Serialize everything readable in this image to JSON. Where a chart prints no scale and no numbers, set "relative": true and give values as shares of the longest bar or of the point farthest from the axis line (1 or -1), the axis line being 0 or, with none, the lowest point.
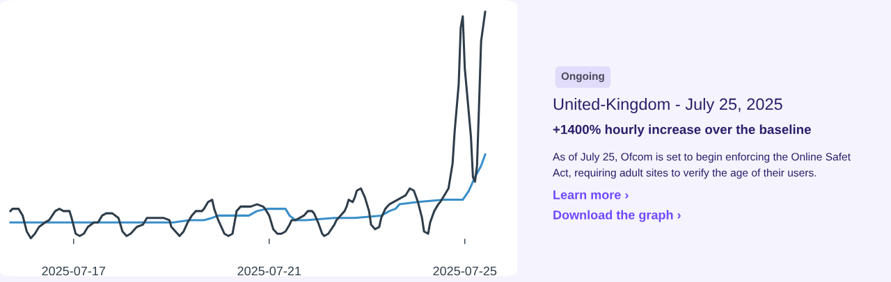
{
  "chart_data": [
    {
      "type": "line",
      "relative": true,
      "tick_labels": "x",
      "grid": false,
      "marker": "none",
      "line_style": "solid",
      "xlim": [
        "2025-07-15T17:00",
        "2025-07-25T10:00"
      ],
      "xticks": [
        "2025-07-17",
        "2025-07-21",
        "2025-07-25"
      ],
      "series": [
        {
          "color": "#2e3d4a",
          "x": [
            "2025-07-15T17:00",
            "2025-07-15T18:00",
            "2025-07-15T21:00",
            "2025-07-15T23:00",
            "2025-07-16T01:00",
            "2025-07-16T03:00",
            "2025-07-16T05:00",
            "2025-07-16T07:00",
            "2025-07-16T10:00",
            "2025-07-16T12:00",
            "2025-07-16T15:00",
            "2025-07-16T17:00",
            "2025-07-16T19:00",
            "2025-07-16T22:00",
            "2025-07-16T23:00",
            "2025-07-17T01:00",
            "2025-07-17T03:00",
            "2025-07-17T05:00",
            "2025-07-17T07:00",
            "2025-07-17T10:00",
            "2025-07-17T12:00",
            "2025-07-17T14:00",
            "2025-07-17T16:00",
            "2025-07-17T19:00",
            "2025-07-17T22:00",
            "2025-07-18T00:00",
            "2025-07-18T02:00",
            "2025-07-18T04:00",
            "2025-07-18T07:00",
            "2025-07-18T10:00",
            "2025-07-18T12:00",
            "2025-07-18T14:00",
            "2025-07-18T16:00",
            "2025-07-18T20:00",
            "2025-07-18T23:00",
            "2025-07-19T00:00",
            "2025-07-19T03:00",
            "2025-07-19T04:00",
            "2025-07-19T06:00",
            "2025-07-19T08:00",
            "2025-07-19T10:00",
            "2025-07-19T12:00",
            "2025-07-19T15:00",
            "2025-07-19T16:00",
            "2025-07-19T18:00",
            "2025-07-19T20:00",
            "2025-07-19T21:00",
            "2025-07-19T23:00",
            "2025-07-20T02:00",
            "2025-07-20T04:00",
            "2025-07-20T06:00",
            "2025-07-20T07:00",
            "2025-07-20T08:00",
            "2025-07-20T10:00",
            "2025-07-20T13:00",
            "2025-07-20T15:00",
            "2025-07-20T18:00",
            "2025-07-20T21:00",
            "2025-07-20T22:00",
            "2025-07-21T00:00",
            "2025-07-21T02:00",
            "2025-07-21T04:00",
            "2025-07-21T06:00",
            "2025-07-21T08:00",
            "2025-07-21T10:00",
            "2025-07-21T11:00",
            "2025-07-21T13:00",
            "2025-07-21T15:00",
            "2025-07-21T17:00",
            "2025-07-21T19:00",
            "2025-07-21T21:00",
            "2025-07-21T22:00",
            "2025-07-22T00:00",
            "2025-07-22T02:00",
            "2025-07-22T03:00",
            "2025-07-22T05:00",
            "2025-07-22T08:00",
            "2025-07-22T09:00",
            "2025-07-22T11:00",
            "2025-07-22T13:00",
            "2025-07-22T14:00",
            "2025-07-22T15:00",
            "2025-07-22T17:00",
            "2025-07-22T18:00",
            "2025-07-22T19:00",
            "2025-07-22T21:00",
            "2025-07-22T23:00",
            "2025-07-23T01:00",
            "2025-07-23T02:00",
            "2025-07-23T04:00",
            "2025-07-23T06:00",
            "2025-07-23T07:00",
            "2025-07-23T09:00",
            "2025-07-23T11:00",
            "2025-07-23T13:00",
            "2025-07-23T15:00",
            "2025-07-23T17:00",
            "2025-07-23T19:00",
            "2025-07-23T21:00",
            "2025-07-23T23:00",
            "2025-07-24T01:00",
            "2025-07-24T03:00",
            "2025-07-24T04:00",
            "2025-07-24T06:00",
            "2025-07-24T07:00",
            "2025-07-24T09:00",
            "2025-07-24T11:00",
            "2025-07-24T12:00",
            "2025-07-24T14:00",
            "2025-07-24T16:00",
            "2025-07-24T18:00",
            "2025-07-24T19:00",
            "2025-07-24T21:00",
            "2025-07-24T22:00",
            "2025-07-24T23:00",
            "2025-07-25T00:00",
            "2025-07-25T01:00",
            "2025-07-25T03:00",
            "2025-07-25T04:00",
            "2025-07-25T05:00",
            "2025-07-25T06:00",
            "2025-07-25T07:00",
            "2025-07-25T08:00",
            "2025-07-25T10:00"
          ],
          "values": [
            0.12,
            0.13,
            0.13,
            0.1,
            0.03,
            0,
            0.02,
            0.05,
            0.07,
            0.08,
            0.12,
            0.13,
            0.12,
            0.12,
            0.09,
            0.02,
            0.01,
            0.02,
            0.05,
            0.07,
            0.07,
            0.1,
            0.11,
            0.11,
            0.09,
            0.03,
            0.01,
            0.02,
            0.05,
            0.06,
            0.09,
            0.09,
            0.09,
            0.09,
            0.08,
            0.05,
            0.02,
            0.01,
            0.03,
            0.07,
            0.1,
            0.12,
            0.12,
            0.13,
            0.16,
            0.17,
            0.13,
            0.08,
            0.02,
            0.01,
            0.02,
            0.07,
            0.12,
            0.14,
            0.14,
            0.14,
            0.15,
            0.14,
            0.13,
            0.1,
            0.04,
            0.02,
            0.02,
            0.03,
            0.06,
            0.08,
            0.08,
            0.09,
            0.1,
            0.12,
            0.12,
            0.11,
            0.07,
            0.02,
            0.01,
            0.02,
            0.06,
            0.08,
            0.1,
            0.12,
            0.14,
            0.17,
            0.16,
            0.18,
            0.21,
            0.22,
            0.18,
            0.12,
            0.06,
            0.04,
            0.05,
            0.09,
            0.13,
            0.15,
            0.16,
            0.17,
            0.18,
            0.19,
            0.22,
            0.21,
            0.16,
            0.09,
            0.03,
            0.02,
            0.07,
            0.12,
            0.15,
            0.16,
            0.19,
            0.22,
            0.33,
            0.47,
            0.68,
            0.93,
            0.98,
            0.75,
            0.65,
            0.45,
            0.27,
            0.25,
            0.32,
            0.59,
            0.87,
            1
          ]
        },
        {
          "color": "#3a8fc8",
          "x": [
            "2025-07-15T17:00",
            "2025-07-19T01:00",
            "2025-07-19T09:00",
            "2025-07-19T16:00",
            "2025-07-19T20:00",
            "2025-07-19T23:00",
            "2025-07-20T14:00",
            "2025-07-20T18:00",
            "2025-07-20T23:00",
            "2025-07-21T08:00",
            "2025-07-21T10:00",
            "2025-07-21T13:00",
            "2025-07-21T18:00",
            "2025-07-22T08:00",
            "2025-07-22T18:00",
            "2025-07-23T07:00",
            "2025-07-23T11:00",
            "2025-07-23T14:00",
            "2025-07-23T16:00",
            "2025-07-24T01:00",
            "2025-07-24T14:00",
            "2025-07-24T23:00",
            "2025-07-25T02:00",
            "2025-07-25T05:00",
            "2025-07-25T08:00",
            "2025-07-25T10:00"
          ],
          "values": [
            0.07,
            0.07,
            0.08,
            0.08,
            0.09,
            0.1,
            0.1,
            0.12,
            0.13,
            0.13,
            0.1,
            0.08,
            0.08,
            0.09,
            0.09,
            0.1,
            0.12,
            0.13,
            0.15,
            0.16,
            0.17,
            0.17,
            0.21,
            0.27,
            0.32,
            0.37
          ]
        }
      ]
    },
    {
      "type": "other",
      "title": "United-Kingdom - July 25, 2025",
      "subtitle": "+1400% hourly increase over the baseline",
      "annotations": [
        "Ongoing",
        "As of July 25, Ofcom is set to begin enforcing the Online Safet",
        "Act, requiring adult sites to verify the age of their users.",
        "Learn more ›",
        "Download the graph ›"
      ]
    }
  ]
}
